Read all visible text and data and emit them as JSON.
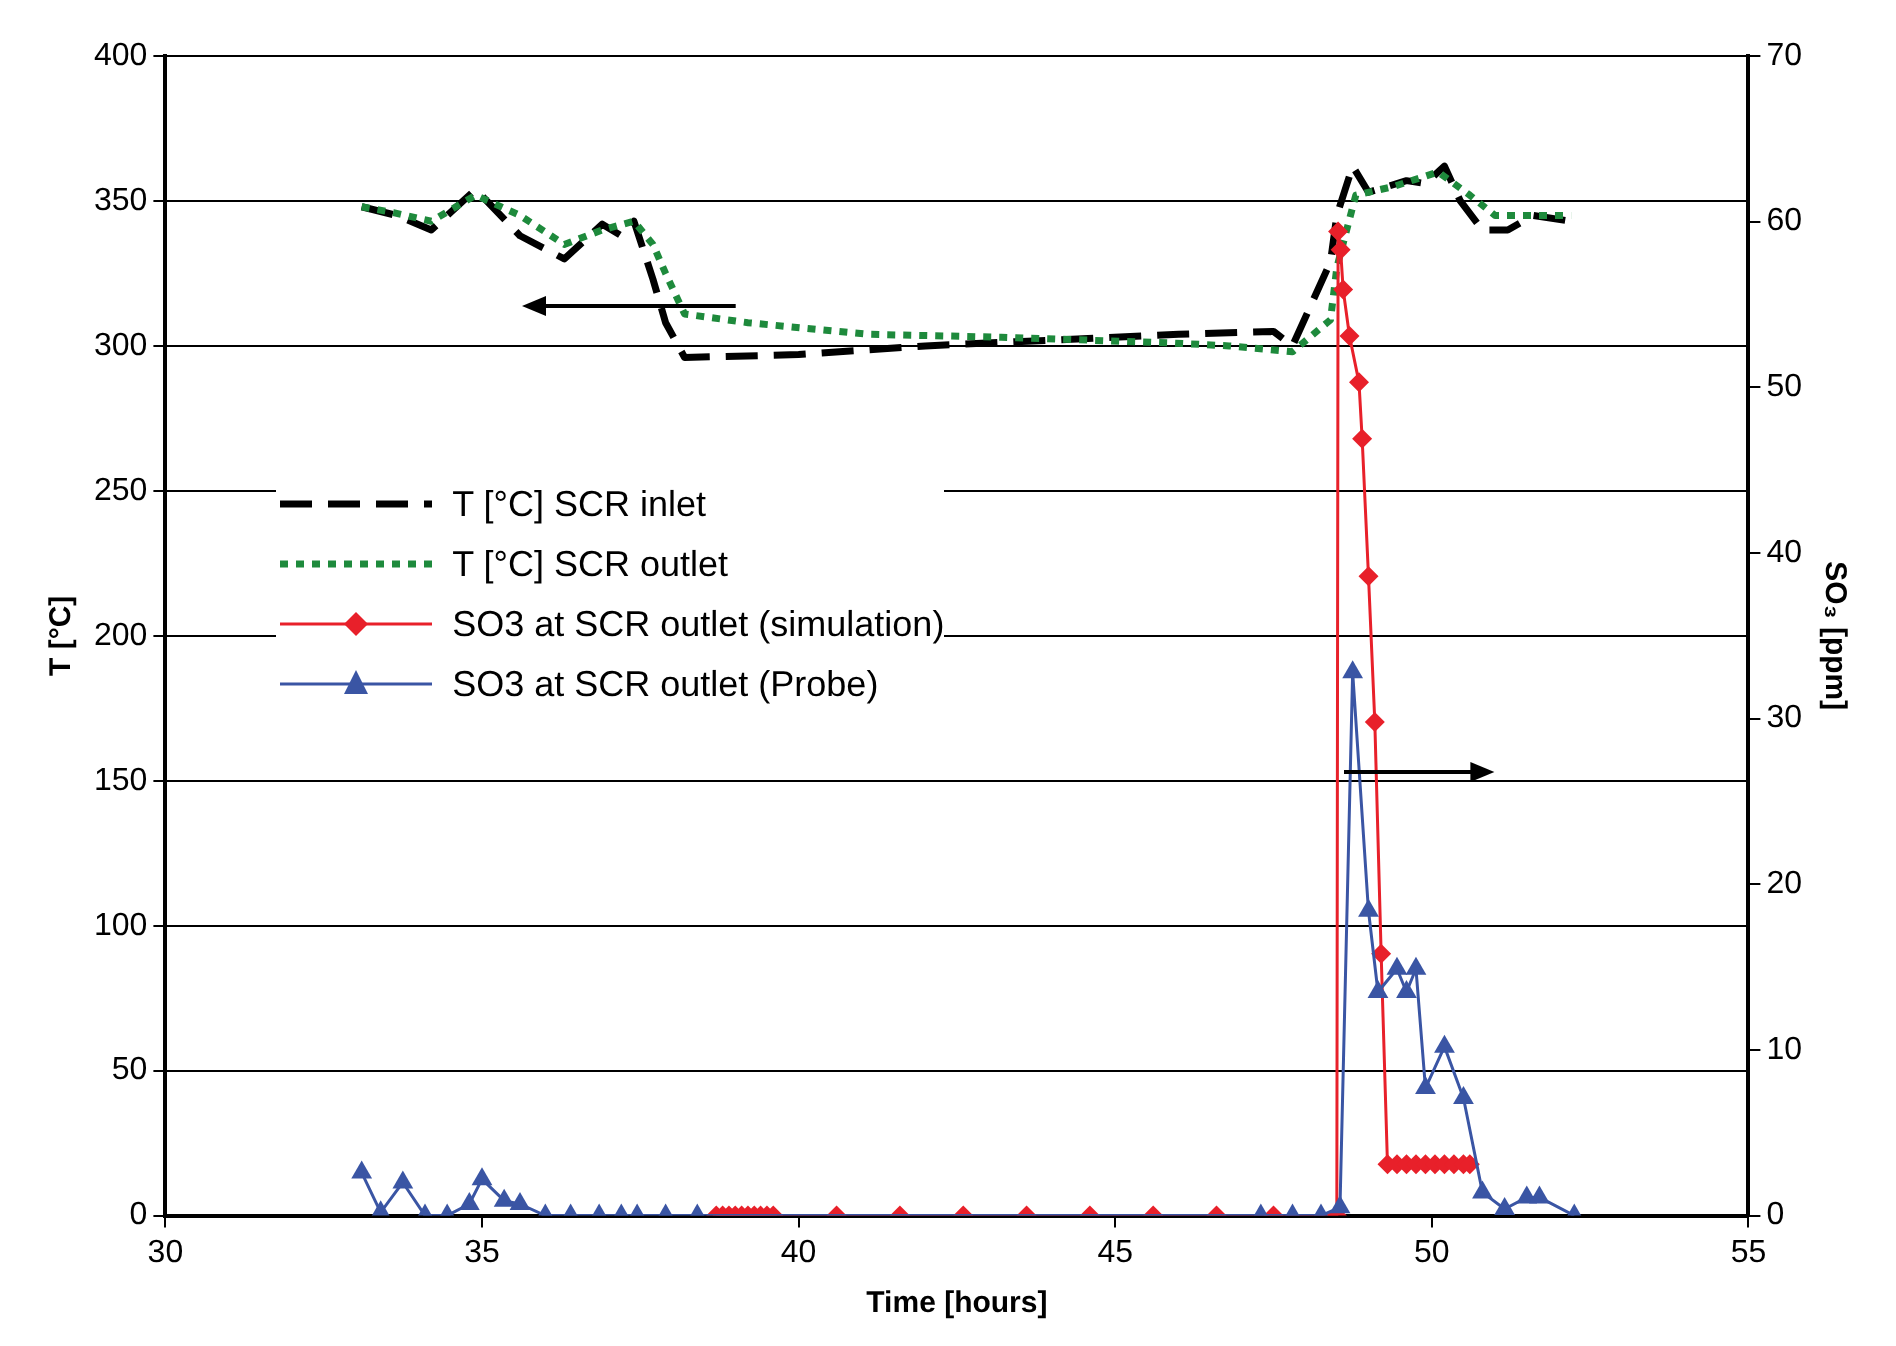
{
  "chart_data": {
    "type": "line",
    "xlabel": "Time [hours]",
    "ylabel": "T [°C]",
    "y2label": "SO₃ [ppm]",
    "xlim": [
      30,
      55
    ],
    "xticks": [
      30,
      35,
      40,
      45,
      50,
      55
    ],
    "ylim": [
      0,
      400
    ],
    "yticks": [
      0,
      50,
      100,
      150,
      200,
      250,
      300,
      350,
      400
    ],
    "y2lim": [
      0,
      70
    ],
    "y2ticks": [
      0,
      10,
      20,
      30,
      40,
      50,
      60,
      70
    ],
    "grid": "y",
    "legend": "top left",
    "series": [
      {
        "name": "T [°C] SCR inlet",
        "color": "#000000",
        "line_style": "dashed",
        "marker": "none",
        "x": [
          33.1,
          33.65,
          34.2,
          34.9,
          35.6,
          36.3,
          36.9,
          37.2,
          37.4,
          37.7,
          37.9,
          38.2,
          40,
          42,
          44,
          46,
          47.5,
          47.8,
          48.4,
          48.5,
          48.75,
          49.0,
          49.6,
          49.9,
          50.2,
          50.45,
          50.8,
          51.2,
          51.6,
          52.2
        ],
        "values": [
          348,
          345,
          340,
          354,
          338,
          330,
          342,
          338,
          343,
          323,
          308,
          296,
          297,
          300,
          302,
          304,
          305,
          300,
          329,
          345,
          362,
          353,
          357,
          356,
          362,
          350,
          340,
          340,
          345,
          343
        ]
      },
      {
        "name": "T [°C] SCR outlet",
        "color": "#1e8a3c",
        "line_style": "dotted",
        "marker": "none",
        "x": [
          33.1,
          33.6,
          34.2,
          34.9,
          35.6,
          36.3,
          36.9,
          37.4,
          37.7,
          37.9,
          38.2,
          39.2,
          41.1,
          43.2,
          45.9,
          46.8,
          47.8,
          48.4,
          48.5,
          48.8,
          49.4,
          50.1,
          50.6,
          51.0,
          52.2
        ],
        "values": [
          348,
          346,
          343,
          352,
          345,
          335,
          340,
          343,
          335,
          325,
          311,
          308,
          304,
          303,
          301,
          300,
          298,
          309,
          327,
          352,
          355,
          360,
          352,
          345,
          345
        ]
      },
      {
        "name": "SO3 at SCR outlet (simulation)",
        "color": "#e8202a",
        "line_style": "solid",
        "marker": "diamond",
        "axis": "y2",
        "x": [
          38.7,
          38.8,
          38.9,
          39.0,
          39.1,
          39.2,
          39.3,
          39.4,
          39.5,
          39.6,
          40.6,
          41.6,
          42.6,
          43.6,
          44.6,
          45.6,
          46.6,
          47.5,
          48.5,
          48.52,
          48.56,
          48.6,
          48.7,
          48.85,
          48.9,
          49.0,
          49.1,
          49.2,
          49.3,
          49.45,
          49.6,
          49.75,
          49.9,
          50.05,
          50.2,
          50.35,
          50.5,
          50.6
        ],
        "values": [
          0,
          0,
          0,
          0,
          0,
          0,
          0,
          0,
          0,
          0,
          0,
          0,
          0,
          0,
          0,
          0,
          0,
          0,
          0,
          59.4,
          58.3,
          55.9,
          53.1,
          50.3,
          46.9,
          38.6,
          29.8,
          15.8,
          3.1,
          3.1,
          3.1,
          3.1,
          3.1,
          3.1,
          3.1,
          3.1,
          3.1,
          3.1
        ]
      },
      {
        "name": "SO3 at SCR outlet (Probe)",
        "color": "#3a55a4",
        "line_style": "solid",
        "marker": "triangle",
        "axis": "y2",
        "x": [
          33.1,
          33.4,
          33.75,
          34.1,
          34.45,
          34.8,
          35.0,
          35.35,
          35.6,
          36.0,
          36.4,
          36.85,
          37.2,
          37.45,
          37.9,
          38.4,
          47.3,
          47.8,
          48.25,
          48.55,
          48.75,
          49.0,
          49.15,
          49.45,
          49.6,
          49.75,
          49.9,
          50.2,
          50.5,
          50.8,
          51.15,
          51.5,
          51.7,
          52.25
        ],
        "values": [
          2.6,
          0.2,
          2.0,
          0,
          0,
          0.7,
          2.2,
          0.9,
          0.7,
          0,
          0,
          0,
          0,
          0,
          0,
          0,
          0,
          0,
          0,
          0.5,
          32.8,
          18.4,
          13.5,
          14.9,
          13.5,
          14.9,
          7.7,
          10.2,
          7.1,
          1.4,
          0.4,
          1.1,
          1.1,
          0
        ]
      }
    ]
  }
}
